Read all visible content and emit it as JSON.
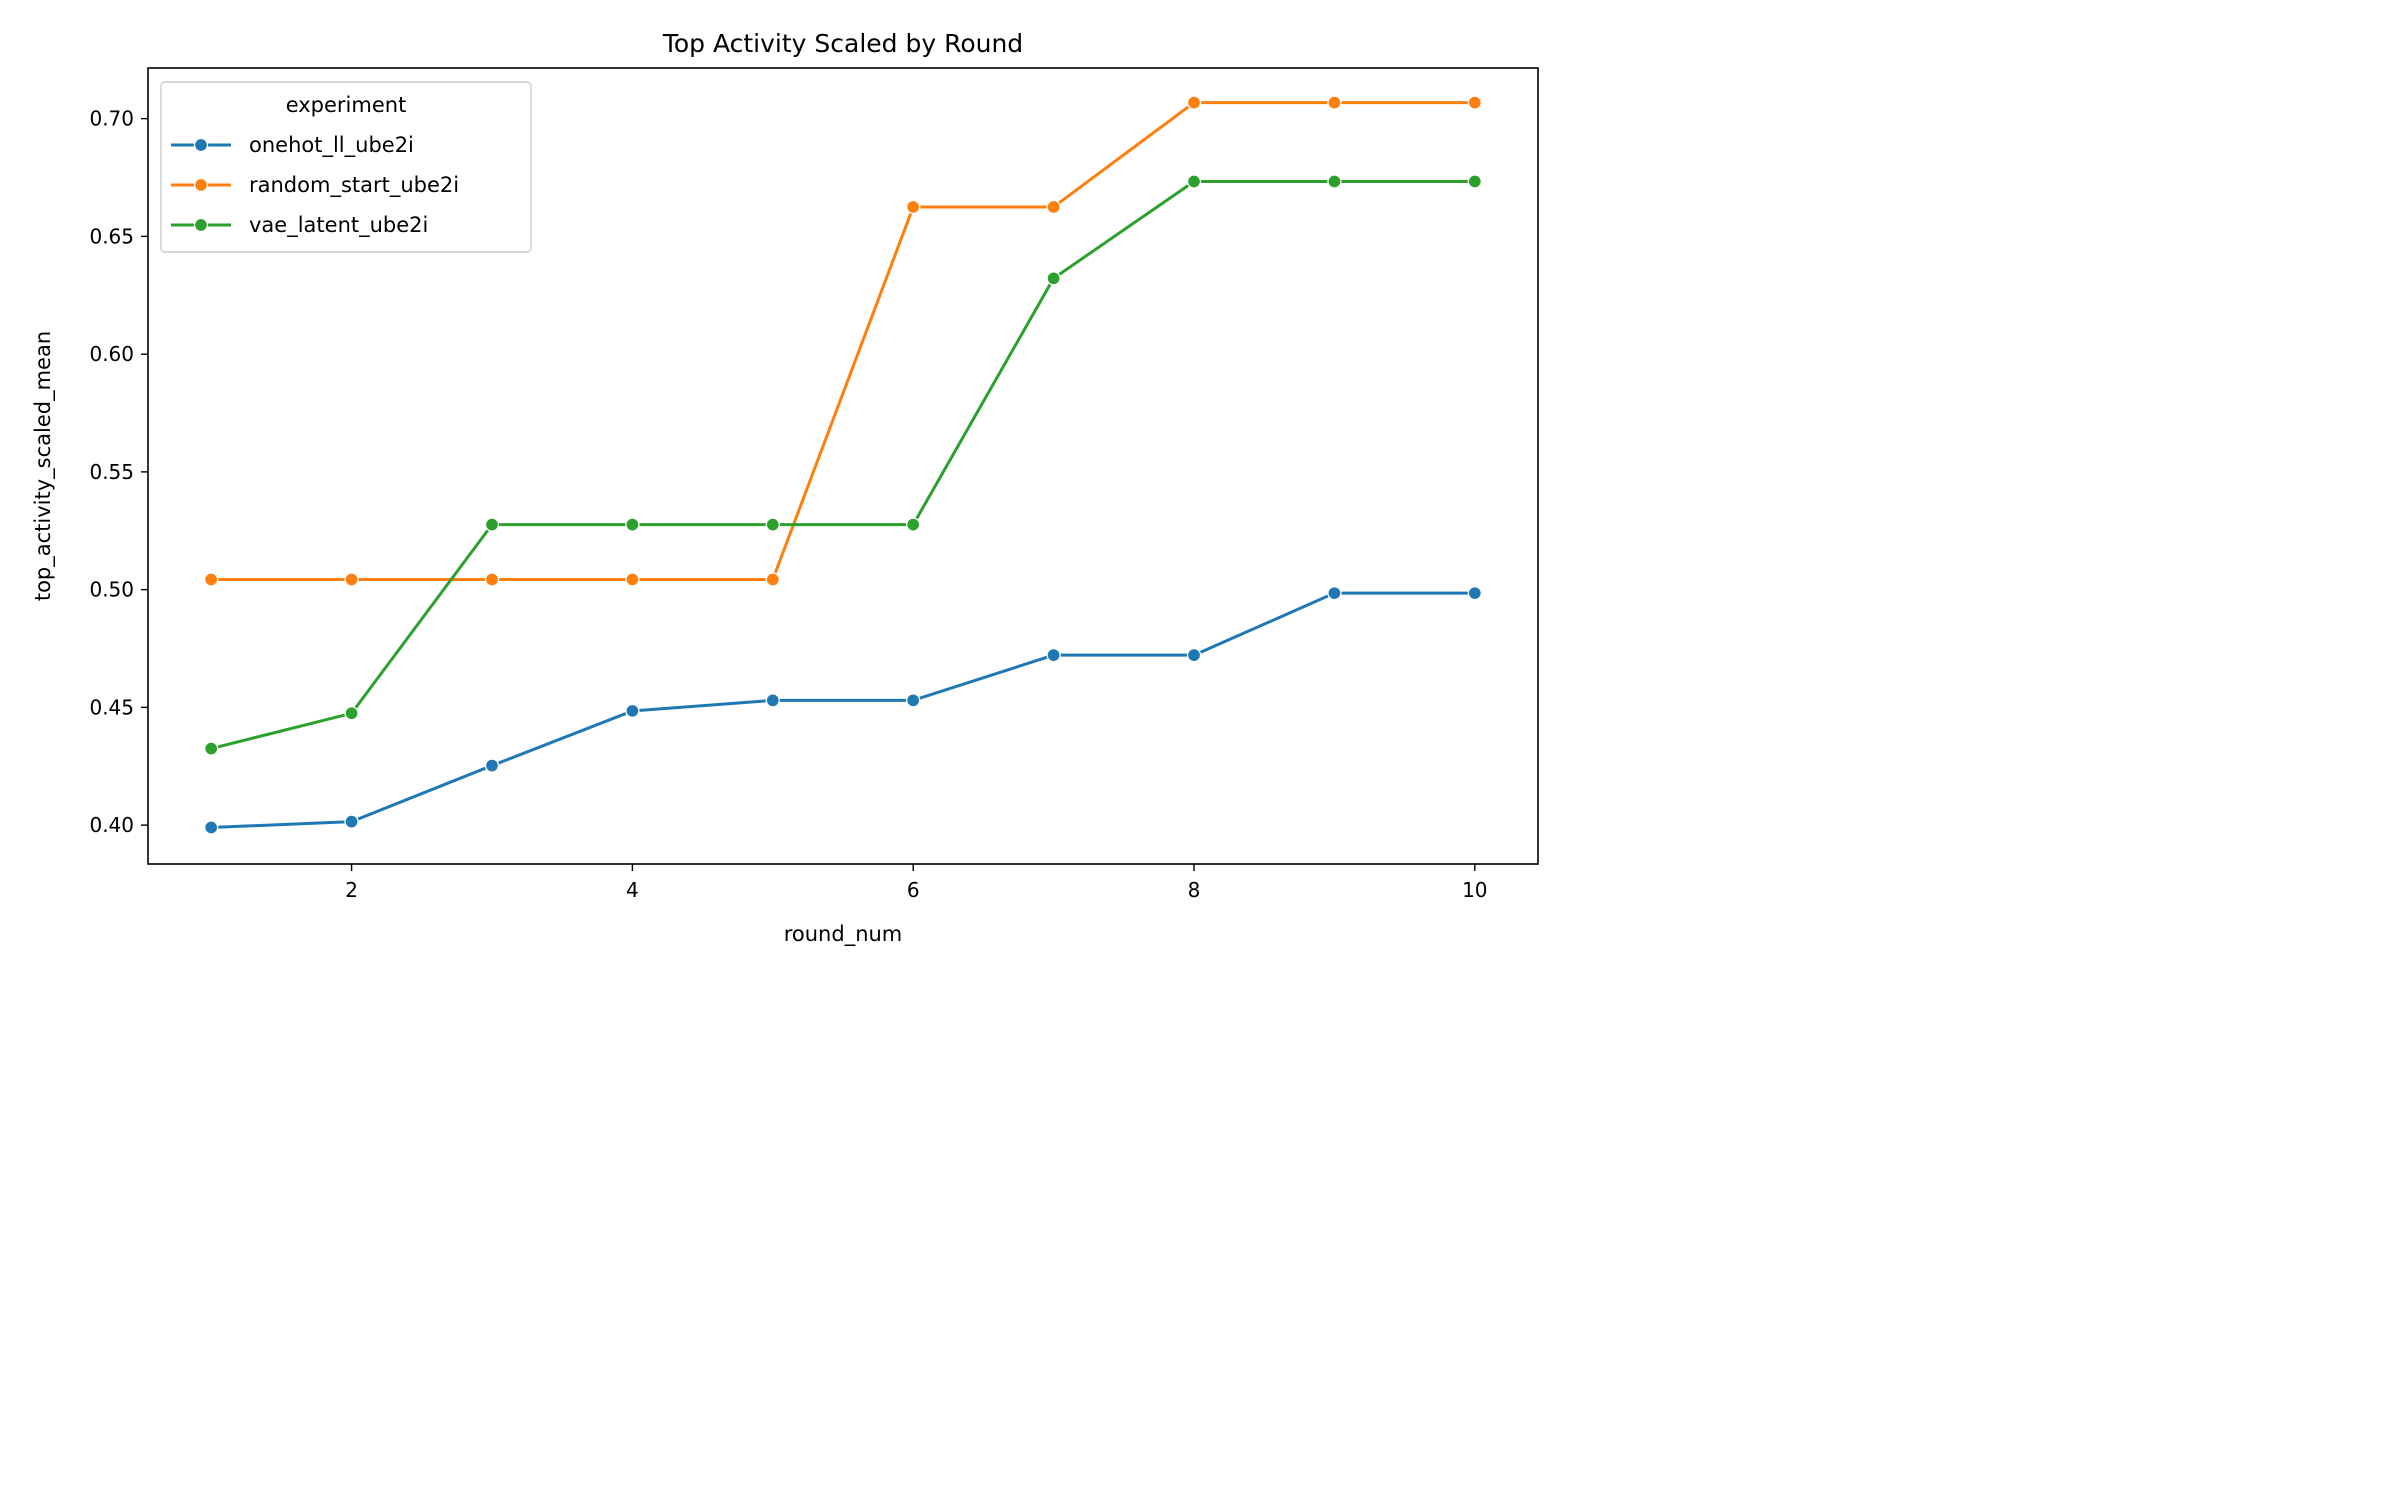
{
  "chart_data": {
    "type": "line",
    "title": "Top Activity Scaled by Round",
    "xlabel": "round_num",
    "ylabel": "top_activity_scaled_mean",
    "x": [
      1,
      2,
      3,
      4,
      5,
      6,
      7,
      8,
      9,
      10
    ],
    "xlim": [
      0.55,
      10.45
    ],
    "ylim": [
      0.3835,
      0.7215
    ],
    "xticks": [
      2,
      4,
      6,
      8,
      10
    ],
    "yticks": [
      0.4,
      0.45,
      0.5,
      0.55,
      0.6,
      0.65,
      0.7
    ],
    "ytick_labels": [
      "0.40",
      "0.45",
      "0.50",
      "0.55",
      "0.60",
      "0.65",
      "0.70"
    ],
    "grid": false,
    "legend": {
      "title": "experiment",
      "placement": "top-left"
    },
    "series": [
      {
        "name": "onehot_ll_ube2i",
        "color": "#1f77b4",
        "values": [
          0.399,
          0.4015,
          0.4253,
          0.4485,
          0.453,
          0.453,
          0.4722,
          0.4722,
          0.4985,
          0.4985
        ]
      },
      {
        "name": "random_start_ube2i",
        "color": "#ff7f0e",
        "values": [
          0.5043,
          0.5043,
          0.5043,
          0.5043,
          0.5043,
          0.6625,
          0.6625,
          0.7068,
          0.7068,
          0.7068
        ]
      },
      {
        "name": "vae_latent_ube2i",
        "color": "#2ca02c",
        "values": [
          0.4325,
          0.4475,
          0.5276,
          0.5276,
          0.5276,
          0.5276,
          0.6322,
          0.6733,
          0.6733,
          0.6733
        ]
      }
    ]
  }
}
